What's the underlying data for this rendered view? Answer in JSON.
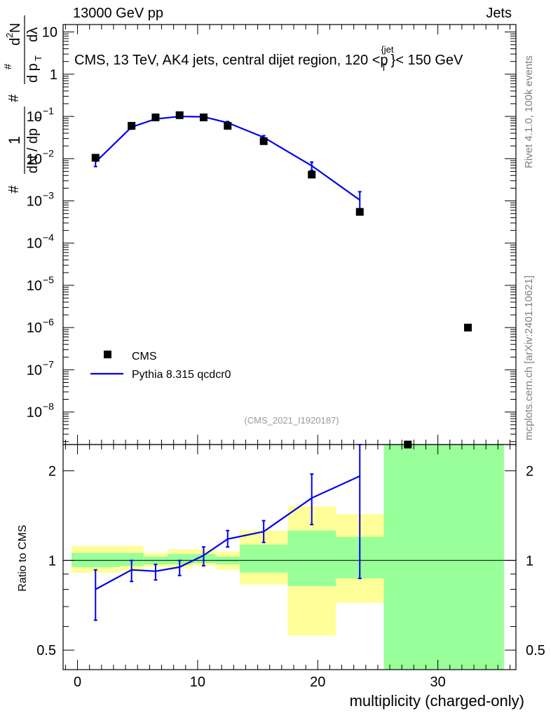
{
  "header": {
    "left": "13000 GeV pp",
    "right": "Jets"
  },
  "side_labels": {
    "rivet": "Rivet 4.1.0,  100k events",
    "mcplots": "mcplots.cern.ch [arXiv:2401.10621]"
  },
  "chart_data": {
    "type": "line",
    "title": "CMS, 13 TeV, AK4 jets, central dijet region, 120 <p_T^{jet}< 150 GeV",
    "title_parts": {
      "main": "CMS, 13 TeV, AK4 jets, central dijet region, 120 <p",
      "sub": "T",
      "sup": "{jet",
      "tail": "}< 150 GeV"
    },
    "analysis_tag": "(CMS_2021_I1920187)",
    "xlabel": "multiplicity (charged-only)",
    "ylabel_top": "1/(dN/dp_T) d²N/(dp_T dλ)",
    "ylabel_bottom": "Ratio to CMS",
    "xlim": [
      -1.2,
      36.5
    ],
    "x_ticks": [
      0,
      10,
      20,
      30
    ],
    "top": {
      "yscale": "log",
      "ylim": [
        1.7e-09,
        15
      ],
      "y_tick_labels": [
        {
          "value": 1e-08,
          "base": "10",
          "exp": "−8"
        },
        {
          "value": 1e-07,
          "base": "10",
          "exp": "−7"
        },
        {
          "value": 1e-06,
          "base": "10",
          "exp": "−6"
        },
        {
          "value": 1e-05,
          "base": "10",
          "exp": "−5"
        },
        {
          "value": 0.0001,
          "base": "10",
          "exp": "−4"
        },
        {
          "value": 0.001,
          "base": "10",
          "exp": "−3"
        },
        {
          "value": 0.01,
          "base": "10",
          "exp": "−2"
        },
        {
          "value": 0.1,
          "base": "10",
          "exp": "−1"
        },
        {
          "value": 1,
          "base": "1",
          "exp": ""
        },
        {
          "value": 10,
          "base": "10",
          "exp": ""
        }
      ]
    },
    "bottom": {
      "yscale": "log",
      "ylim": [
        0.43,
        2.45
      ],
      "y_tick_labels": [
        {
          "value": 0.5,
          "label": "0.5"
        },
        {
          "value": 1,
          "label": "1"
        },
        {
          "value": 2,
          "label": "2"
        }
      ]
    },
    "legend": [
      {
        "name": "CMS",
        "marker": "square",
        "color": "#000000"
      },
      {
        "name": "Pythia 8.315 qcdcr0",
        "marker": "line",
        "color": "#0000ee"
      }
    ],
    "series": [
      {
        "name": "CMS",
        "x": [
          1.5,
          4.5,
          6.5,
          8.5,
          10.5,
          12.5,
          15.5,
          19.5,
          23.5,
          27.5,
          32.5
        ],
        "values": [
          0.0105,
          0.06,
          0.095,
          0.107,
          0.095,
          0.06,
          0.026,
          0.0042,
          0.00055,
          1.6e-09,
          1e-06
        ]
      },
      {
        "name": "Pythia 8.315 qcdcr0",
        "x": [
          1.5,
          4.5,
          6.5,
          8.5,
          10.5,
          12.5,
          15.5,
          19.5,
          23.5
        ],
        "values": [
          0.0083,
          0.056,
          0.087,
          0.1,
          0.098,
          0.071,
          0.032,
          0.0068,
          0.00105
        ],
        "err_low": [
          0.0018,
          0.006,
          0.006,
          0.007,
          0.006,
          0.005,
          0.003,
          0.0015,
          0.00055
        ],
        "err_high": [
          0.0018,
          0.006,
          0.006,
          0.007,
          0.006,
          0.005,
          0.003,
          0.0015,
          0.0006
        ]
      }
    ],
    "ratio": {
      "name": "Pythia 8.315 qcdcr0 / CMS",
      "x": [
        1.5,
        4.5,
        6.5,
        8.5,
        10.5,
        12.5,
        15.5,
        19.5,
        23.5
      ],
      "values": [
        0.8,
        0.93,
        0.92,
        0.95,
        1.04,
        1.18,
        1.25,
        1.62,
        1.92
      ],
      "err_low": [
        0.17,
        0.08,
        0.06,
        0.06,
        0.08,
        0.07,
        0.1,
        0.3,
        1.05
      ],
      "err_high": [
        0.13,
        0.07,
        0.05,
        0.05,
        0.07,
        0.08,
        0.11,
        0.33,
        0.55
      ]
    },
    "ratio_bands": {
      "edges": [
        -0.5,
        3.5,
        5.5,
        7.5,
        9.5,
        11.5,
        13.5,
        17.5,
        21.5,
        25.5,
        35.5
      ],
      "yellow_low": [
        0.91,
        0.92,
        0.95,
        0.94,
        0.96,
        0.93,
        0.83,
        0.56,
        0.72,
        0.43
      ],
      "yellow_high": [
        1.12,
        1.12,
        1.06,
        1.09,
        1.09,
        1.07,
        1.26,
        1.52,
        1.43,
        2.45
      ],
      "green_low": [
        0.95,
        0.96,
        0.97,
        0.97,
        0.98,
        0.97,
        0.91,
        0.82,
        0.87,
        0.43
      ],
      "green_high": [
        1.06,
        1.06,
        1.03,
        1.05,
        1.05,
        1.03,
        1.13,
        1.26,
        1.2,
        2.45
      ]
    }
  }
}
